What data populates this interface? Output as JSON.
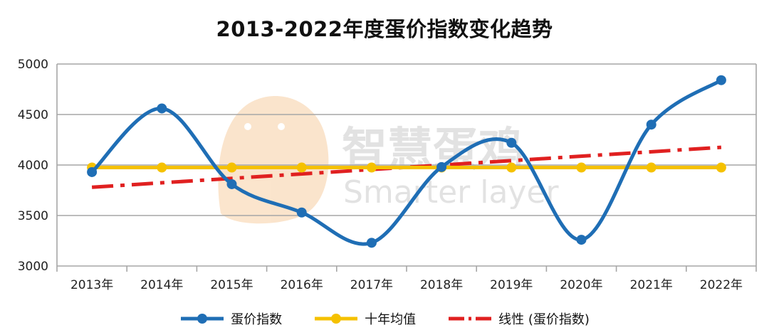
{
  "title": "2013-2022年度蛋价指数变化趋势",
  "watermark": {
    "cn": "智慧蛋鸡",
    "en": "Smarter layer"
  },
  "colors": {
    "egg_index": "#1f6eb5",
    "ten_year_avg": "#f5c100",
    "linear": "#e02020",
    "grid": "#a6a6a6"
  },
  "chart_data": {
    "type": "line",
    "categories": [
      "2013年",
      "2014年",
      "2015年",
      "2016年",
      "2017年",
      "2018年",
      "2019年",
      "2020年",
      "2021年",
      "2022年"
    ],
    "ylim": [
      3000,
      5000
    ],
    "yticks": [
      3000,
      3500,
      4000,
      4500,
      5000
    ],
    "grid": true,
    "legend_position": "bottom",
    "series": [
      {
        "name": "蛋价指数",
        "style": "smooth-line-markers",
        "values": [
          3930,
          4560,
          3810,
          3530,
          3230,
          3980,
          4220,
          3260,
          4400,
          4840
        ]
      },
      {
        "name": "十年均值",
        "style": "line-markers",
        "values": [
          3975,
          3975,
          3975,
          3975,
          3975,
          3975,
          3975,
          3975,
          3975,
          3975
        ]
      },
      {
        "name": "线性 (蛋价指数)",
        "style": "dash-dot-trendline",
        "values": [
          3780,
          3825,
          3870,
          3915,
          3960,
          4000,
          4045,
          4090,
          4130,
          4175
        ]
      }
    ]
  }
}
